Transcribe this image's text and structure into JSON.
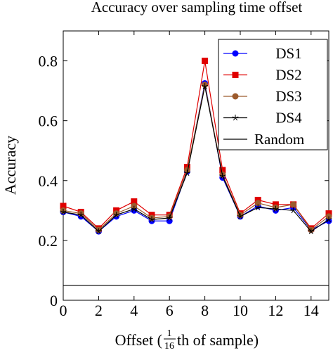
{
  "chart_data": {
    "type": "line",
    "title": "Accuracy over sampling time offset",
    "xlabel_pre": "Offset (",
    "xlabel_frac_num": "1",
    "xlabel_frac_den": "16",
    "xlabel_post": "th of sample)",
    "ylabel": "Accuracy",
    "xlim": [
      0,
      15
    ],
    "ylim": [
      0,
      0.9
    ],
    "xticks": [
      0,
      2,
      4,
      6,
      8,
      10,
      12,
      14
    ],
    "yticks": [
      0,
      0.2,
      0.4,
      0.6,
      0.8
    ],
    "ytick_labels": [
      "0",
      "0.2",
      "0.4",
      "0.6",
      "0.8"
    ],
    "grid": false,
    "legend_position": "top-right",
    "x": [
      0,
      1,
      2,
      3,
      4,
      5,
      6,
      7,
      8,
      9,
      10,
      11,
      12,
      13,
      14,
      15
    ],
    "series": [
      {
        "name": "DS1",
        "color": "#0000ff",
        "marker": "circle",
        "values": [
          0.295,
          0.28,
          0.23,
          0.28,
          0.3,
          0.265,
          0.265,
          0.43,
          0.725,
          0.41,
          0.28,
          0.315,
          0.3,
          0.31,
          0.235,
          0.265
        ]
      },
      {
        "name": "DS2",
        "color": "#e00000",
        "marker": "square",
        "values": [
          0.315,
          0.295,
          0.24,
          0.3,
          0.33,
          0.285,
          0.285,
          0.445,
          0.8,
          0.435,
          0.29,
          0.335,
          0.32,
          0.32,
          0.24,
          0.29
        ]
      },
      {
        "name": "DS3",
        "color": "#9c5a2c",
        "marker": "circle",
        "values": [
          0.3,
          0.29,
          0.235,
          0.29,
          0.315,
          0.275,
          0.28,
          0.435,
          0.72,
          0.42,
          0.285,
          0.325,
          0.31,
          0.32,
          0.235,
          0.28
        ]
      },
      {
        "name": "DS4",
        "color": "#000000",
        "marker": "star",
        "values": [
          0.295,
          0.285,
          0.23,
          0.285,
          0.305,
          0.27,
          0.275,
          0.425,
          0.715,
          0.415,
          0.28,
          0.31,
          0.305,
          0.3,
          0.23,
          0.27
        ]
      },
      {
        "name": "Random",
        "color": "#000000",
        "marker": "none",
        "values": [
          0.05,
          0.05,
          0.05,
          0.05,
          0.05,
          0.05,
          0.05,
          0.05,
          0.05,
          0.05,
          0.05,
          0.05,
          0.05,
          0.05,
          0.05,
          0.05
        ]
      }
    ]
  }
}
